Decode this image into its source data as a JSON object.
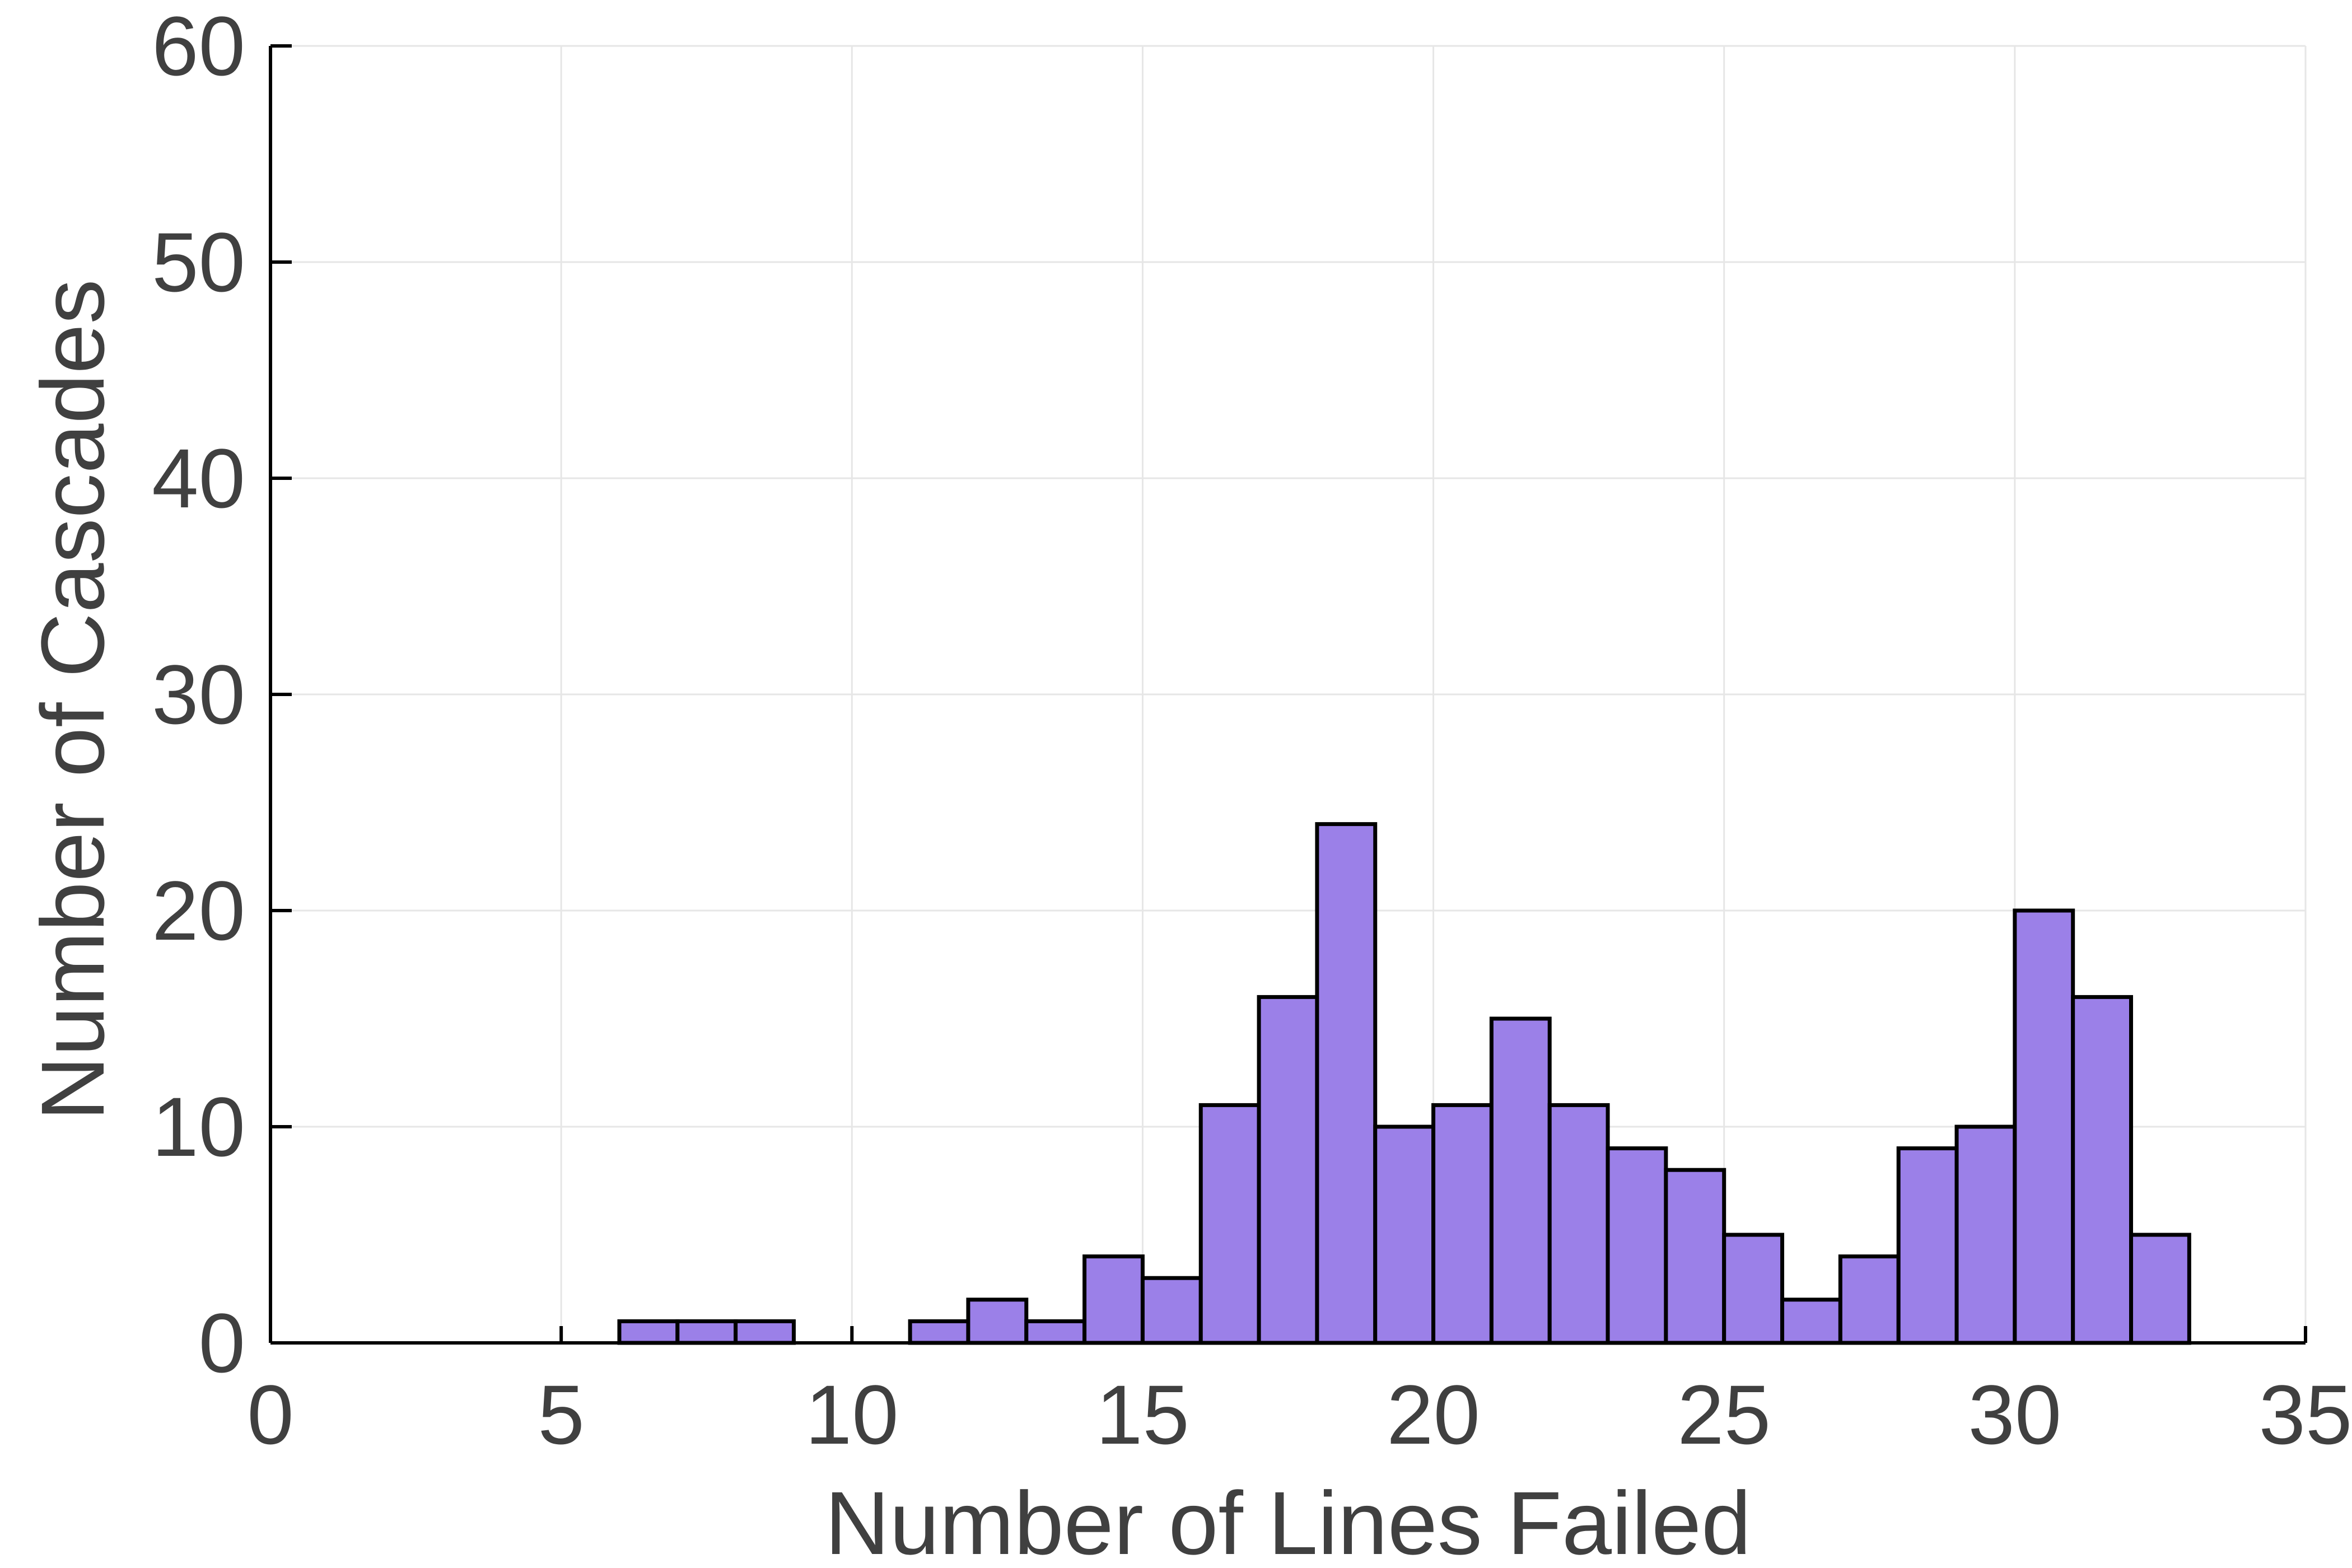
{
  "chart_data": {
    "type": "bar",
    "title": "",
    "xlabel": "Number of Lines Failed",
    "ylabel": "Number of Cascades",
    "xlim": [
      0,
      35
    ],
    "ylim": [
      0,
      60
    ],
    "xticks": [
      0,
      5,
      10,
      15,
      20,
      25,
      30,
      35
    ],
    "yticks": [
      0,
      10,
      20,
      30,
      40,
      50,
      60
    ],
    "grid": true,
    "bar_color": "#9b80e8",
    "bins": [
      {
        "x0": 6,
        "x1": 7,
        "value": 1
      },
      {
        "x0": 7,
        "x1": 8,
        "value": 1
      },
      {
        "x0": 8,
        "x1": 9,
        "value": 1
      },
      {
        "x0": 11,
        "x1": 12,
        "value": 1
      },
      {
        "x0": 12,
        "x1": 13,
        "value": 2
      },
      {
        "x0": 13,
        "x1": 14,
        "value": 1
      },
      {
        "x0": 14,
        "x1": 15,
        "value": 4
      },
      {
        "x0": 15,
        "x1": 16,
        "value": 3
      },
      {
        "x0": 16,
        "x1": 17,
        "value": 11
      },
      {
        "x0": 17,
        "x1": 18,
        "value": 16
      },
      {
        "x0": 18,
        "x1": 19,
        "value": 24
      },
      {
        "x0": 19,
        "x1": 20,
        "value": 10
      },
      {
        "x0": 20,
        "x1": 21,
        "value": 11
      },
      {
        "x0": 21,
        "x1": 22,
        "value": 15
      },
      {
        "x0": 22,
        "x1": 23,
        "value": 11
      },
      {
        "x0": 23,
        "x1": 24,
        "value": 9
      },
      {
        "x0": 24,
        "x1": 25,
        "value": 8
      },
      {
        "x0": 25,
        "x1": 26,
        "value": 5
      },
      {
        "x0": 26,
        "x1": 27,
        "value": 2
      },
      {
        "x0": 27,
        "x1": 28,
        "value": 4
      },
      {
        "x0": 28,
        "x1": 29,
        "value": 9
      },
      {
        "x0": 29,
        "x1": 30,
        "value": 10
      },
      {
        "x0": 30,
        "x1": 31,
        "value": 20
      },
      {
        "x0": 31,
        "x1": 32,
        "value": 16
      },
      {
        "x0": 32,
        "x1": 33,
        "value": 5
      }
    ]
  }
}
